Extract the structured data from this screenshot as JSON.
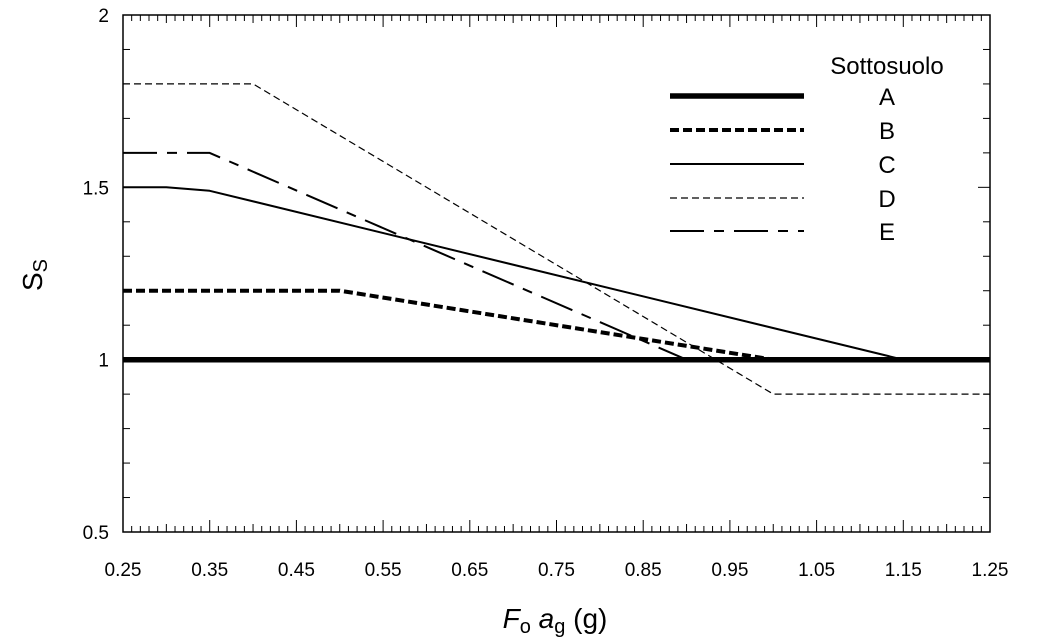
{
  "chart_data": {
    "type": "line",
    "title": "",
    "xlabel": {
      "main": "F",
      "sub1": "o",
      "mid": " a",
      "sub2": "g",
      "tail": " (g)"
    },
    "ylabel": {
      "main": "S",
      "sub": "S"
    },
    "xlim": [
      0.25,
      1.25
    ],
    "ylim": [
      0.5,
      2.0
    ],
    "x_ticks": [
      "0.25",
      "0.35",
      "0.45",
      "0.55",
      "0.65",
      "0.75",
      "0.85",
      "0.95",
      "1.05",
      "1.15",
      "1.25"
    ],
    "y_ticks": [
      "0.5",
      "1",
      "1.5",
      "2"
    ],
    "grid": false,
    "legend": {
      "title": "Sottosuolo",
      "placement": "top-right"
    },
    "series": [
      {
        "name": "A",
        "style": "thick-solid",
        "x": [
          0.25,
          1.25
        ],
        "y": [
          1.0,
          1.0
        ]
      },
      {
        "name": "B",
        "style": "thick-dash",
        "x": [
          0.25,
          0.5,
          1.0,
          1.25
        ],
        "y": [
          1.2,
          1.2,
          1.0,
          1.0
        ]
      },
      {
        "name": "C",
        "style": "solid",
        "x": [
          0.25,
          0.3,
          0.35,
          1.15,
          1.25
        ],
        "y": [
          1.5,
          1.5,
          1.49,
          1.0,
          1.0
        ]
      },
      {
        "name": "D",
        "style": "thin-dash",
        "x": [
          0.25,
          0.4,
          1.0,
          1.25
        ],
        "y": [
          1.8,
          1.8,
          0.9,
          0.9
        ]
      },
      {
        "name": "E",
        "style": "dash-dot",
        "x": [
          0.25,
          0.35,
          0.9,
          1.25
        ],
        "y": [
          1.6,
          1.6,
          1.0,
          1.0
        ]
      }
    ]
  }
}
